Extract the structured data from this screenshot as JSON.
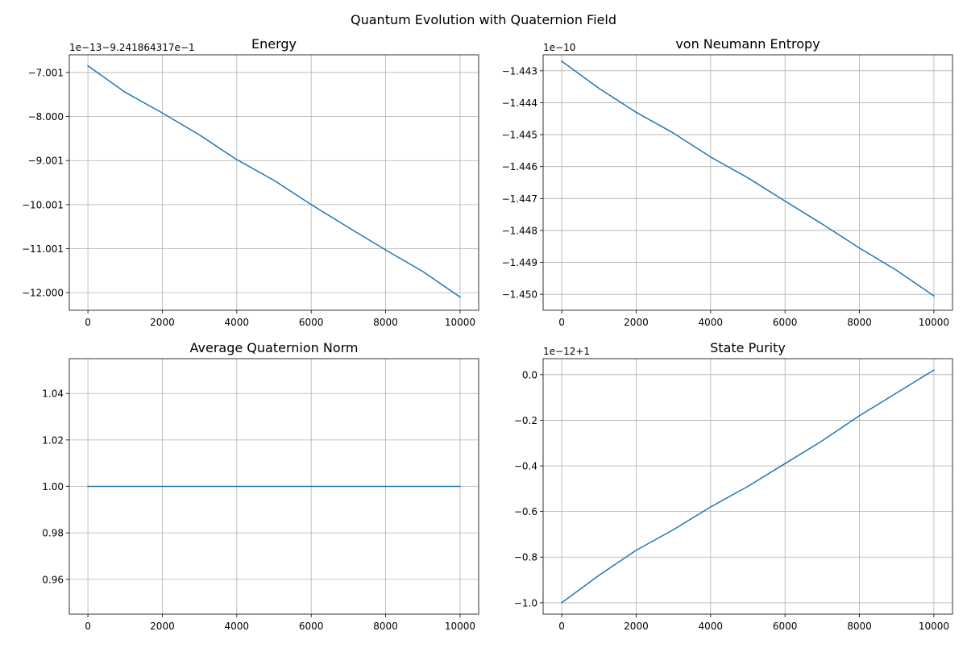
{
  "figure": {
    "title": "Quantum Evolution with Quaternion Field"
  },
  "colors": {
    "series": "#1f77b4"
  },
  "chart_data": [
    {
      "type": "line",
      "title": "Energy",
      "offset_label": "1e−13−9.241864317e−1",
      "grid": true,
      "xlim": [
        -500,
        10500
      ],
      "ylim": [
        -12.4,
        -6.6
      ],
      "xticks": [
        0,
        2000,
        4000,
        6000,
        8000,
        10000
      ],
      "xtick_labels": [
        "0",
        "2000",
        "4000",
        "6000",
        "8000",
        "10000"
      ],
      "yticks": [
        -7.001,
        -8.0,
        -9.001,
        -10.001,
        -11.001,
        -12.0
      ],
      "ytick_labels": [
        "−7.001",
        "−8.000",
        "−9.001",
        "−10.001",
        "−11.001",
        "−12.000"
      ],
      "series": [
        {
          "x": [
            0,
            1000,
            2000,
            3000,
            4000,
            5000,
            6000,
            7000,
            8000,
            9000,
            10000
          ],
          "y": [
            -6.85,
            -7.45,
            -7.92,
            -8.42,
            -8.98,
            -9.45,
            -10.0,
            -10.52,
            -11.03,
            -11.52,
            -12.1
          ]
        }
      ]
    },
    {
      "type": "line",
      "title": "von Neumann Entropy",
      "offset_label": "1e−10",
      "grid": true,
      "xlim": [
        -500,
        10500
      ],
      "ylim": [
        -1.4505,
        -1.4425
      ],
      "xticks": [
        0,
        2000,
        4000,
        6000,
        8000,
        10000
      ],
      "xtick_labels": [
        "0",
        "2000",
        "4000",
        "6000",
        "8000",
        "10000"
      ],
      "yticks": [
        -1.443,
        -1.444,
        -1.445,
        -1.446,
        -1.447,
        -1.448,
        -1.449,
        -1.45
      ],
      "ytick_labels": [
        "−1.443",
        "−1.444",
        "−1.445",
        "−1.446",
        "−1.447",
        "−1.448",
        "−1.449",
        "−1.450"
      ],
      "series": [
        {
          "x": [
            0,
            1000,
            2000,
            3000,
            4000,
            5000,
            6000,
            7000,
            8000,
            9000,
            10000
          ],
          "y": [
            -1.4427,
            -1.44355,
            -1.4443,
            -1.44495,
            -1.4457,
            -1.44635,
            -1.44708,
            -1.4478,
            -1.44855,
            -1.44925,
            -1.45005
          ]
        }
      ]
    },
    {
      "type": "line",
      "title": "Average Quaternion Norm",
      "offset_label": "",
      "grid": true,
      "xlim": [
        -500,
        10500
      ],
      "ylim": [
        0.945,
        1.055
      ],
      "xticks": [
        0,
        2000,
        4000,
        6000,
        8000,
        10000
      ],
      "xtick_labels": [
        "0",
        "2000",
        "4000",
        "6000",
        "8000",
        "10000"
      ],
      "yticks": [
        0.96,
        0.98,
        1.0,
        1.02,
        1.04
      ],
      "ytick_labels": [
        "0.96",
        "0.98",
        "1.00",
        "1.02",
        "1.04"
      ],
      "series": [
        {
          "x": [
            0,
            10000
          ],
          "y": [
            1.0,
            1.0
          ]
        }
      ]
    },
    {
      "type": "line",
      "title": "State Purity",
      "offset_label": "1e−12+1",
      "grid": true,
      "xlim": [
        -500,
        10500
      ],
      "ylim": [
        -1.05,
        0.07
      ],
      "xticks": [
        0,
        2000,
        4000,
        6000,
        8000,
        10000
      ],
      "xtick_labels": [
        "0",
        "2000",
        "4000",
        "6000",
        "8000",
        "10000"
      ],
      "yticks": [
        0.0,
        -0.2,
        -0.4,
        -0.6,
        -0.8,
        -1.0
      ],
      "ytick_labels": [
        "0.0",
        "−0.2",
        "−0.4",
        "−0.6",
        "−0.8",
        "−1.0"
      ],
      "series": [
        {
          "x": [
            0,
            1000,
            2000,
            3000,
            4000,
            5000,
            6000,
            7000,
            8000,
            9000,
            10000
          ],
          "y": [
            -1.0,
            -0.88,
            -0.77,
            -0.68,
            -0.58,
            -0.49,
            -0.39,
            -0.29,
            -0.18,
            -0.08,
            0.02
          ]
        }
      ]
    }
  ]
}
